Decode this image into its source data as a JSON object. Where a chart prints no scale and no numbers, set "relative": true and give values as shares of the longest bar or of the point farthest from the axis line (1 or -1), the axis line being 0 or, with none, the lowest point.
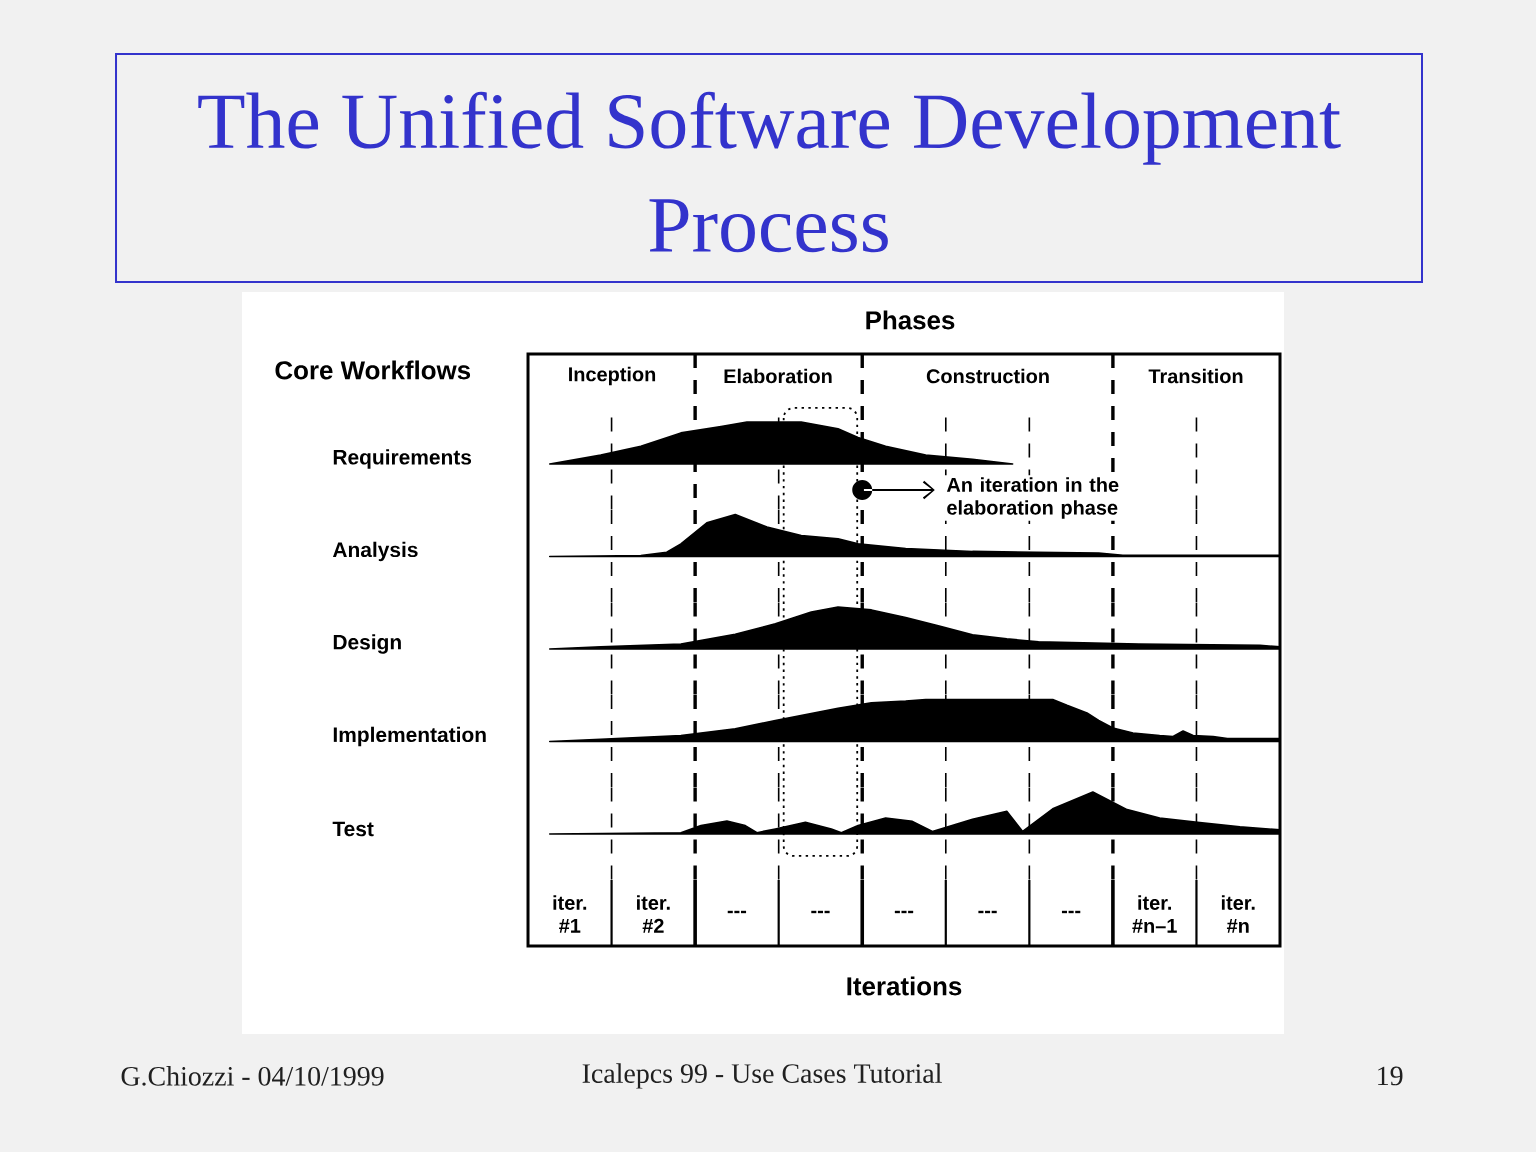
{
  "chart_data": [
    {
      "type": "area",
      "title": "The Unified Software Development Process",
      "ylabel": "Requirements",
      "relative": true,
      "xlim": [
        0,
        9
      ],
      "tick_labels": false,
      "color": "#000000",
      "x": [
        0.26,
        0.87,
        1.35,
        1.83,
        2.31,
        2.62,
        2.91,
        3.27,
        3.71,
        3.95,
        4.28,
        4.76,
        5.32,
        5.8
      ],
      "values": [
        0,
        0.21,
        0.42,
        0.74,
        0.89,
        1,
        1,
        1,
        0.84,
        0.63,
        0.42,
        0.21,
        0.11,
        0
      ],
      "ref_lines": [
        {
          "axis": "x",
          "value": 1,
          "line_style": "dashed"
        },
        {
          "axis": "x",
          "value": 2,
          "line_style": "dashed"
        },
        {
          "axis": "x",
          "value": 3,
          "line_style": "dashed"
        },
        {
          "axis": "x",
          "value": 4,
          "line_style": "dashed"
        },
        {
          "axis": "x",
          "value": 5,
          "line_style": "dashed"
        },
        {
          "axis": "x",
          "value": 6,
          "line_style": "dashed"
        },
        {
          "axis": "x",
          "value": 7,
          "line_style": "dashed"
        },
        {
          "axis": "x",
          "value": 8,
          "line_style": "dashed"
        }
      ],
      "annotations": [
        "Phases",
        "Core Workflows",
        "Inception",
        "Elaboration",
        "Construction",
        "Transition",
        "An iteration in the elaboration phase",
        "G.Chiozzi - 04/10/1999",
        "Icalepcs 99 - Use Cases Tutorial",
        "19"
      ]
    },
    {
      "type": "area",
      "ylabel": "Analysis",
      "relative": true,
      "xlim": [
        0,
        9
      ],
      "tick_labels": false,
      "color": "#000000",
      "x": [
        0.26,
        1.35,
        1.66,
        1.83,
        2.14,
        2.48,
        2.86,
        3.27,
        3.71,
        3.95,
        4.52,
        5.32,
        6.83,
        7.12,
        9
      ],
      "values": [
        0,
        0.02,
        0.1,
        0.3,
        0.8,
        1,
        0.7,
        0.5,
        0.42,
        0.3,
        0.19,
        0.12,
        0.08,
        0.03,
        0.03
      ],
      "ref_lines": [
        {
          "axis": "x",
          "value": 1,
          "line_style": "dashed"
        },
        {
          "axis": "x",
          "value": 2,
          "line_style": "dashed"
        },
        {
          "axis": "x",
          "value": 3,
          "line_style": "dashed"
        },
        {
          "axis": "x",
          "value": 4,
          "line_style": "dashed"
        },
        {
          "axis": "x",
          "value": 5,
          "line_style": "dashed"
        },
        {
          "axis": "x",
          "value": 6,
          "line_style": "dashed"
        },
        {
          "axis": "x",
          "value": 7,
          "line_style": "dashed"
        },
        {
          "axis": "x",
          "value": 8,
          "line_style": "dashed"
        }
      ]
    },
    {
      "type": "area",
      "ylabel": "Design",
      "relative": true,
      "xlim": [
        0,
        9
      ],
      "tick_labels": false,
      "color": "#000000",
      "x": [
        0.26,
        0.87,
        1.83,
        2.48,
        2.96,
        3.39,
        3.71,
        4.11,
        4.52,
        4.91,
        5.32,
        5.73,
        6.11,
        7.31,
        8.76,
        9
      ],
      "values": [
        0,
        0.05,
        0.12,
        0.35,
        0.6,
        0.88,
        1,
        0.93,
        0.75,
        0.55,
        0.34,
        0.24,
        0.17,
        0.12,
        0.09,
        0.05
      ],
      "ref_lines": [
        {
          "axis": "x",
          "value": 1,
          "line_style": "dashed"
        },
        {
          "axis": "x",
          "value": 2,
          "line_style": "dashed"
        },
        {
          "axis": "x",
          "value": 3,
          "line_style": "dashed"
        },
        {
          "axis": "x",
          "value": 4,
          "line_style": "dashed"
        },
        {
          "axis": "x",
          "value": 5,
          "line_style": "dashed"
        },
        {
          "axis": "x",
          "value": 6,
          "line_style": "dashed"
        },
        {
          "axis": "x",
          "value": 7,
          "line_style": "dashed"
        },
        {
          "axis": "x",
          "value": 8,
          "line_style": "dashed"
        }
      ]
    },
    {
      "type": "area",
      "ylabel": "Implementation",
      "relative": true,
      "xlim": [
        0,
        9
      ],
      "tick_labels": false,
      "color": "#000000",
      "x": [
        0.26,
        0.87,
        1.83,
        2.48,
        2.96,
        3.71,
        4.11,
        4.52,
        4.76,
        6.28,
        6.45,
        6.69,
        6.83,
        7.0,
        7.24,
        7.56,
        7.72,
        7.84,
        7.96,
        8.2,
        8.37,
        9
      ],
      "values": [
        0,
        0.05,
        0.14,
        0.3,
        0.5,
        0.79,
        0.92,
        0.96,
        1,
        1,
        0.86,
        0.68,
        0.5,
        0.32,
        0.2,
        0.14,
        0.12,
        0.25,
        0.14,
        0.12,
        0.07,
        0.07
      ],
      "ref_lines": [
        {
          "axis": "x",
          "value": 1,
          "line_style": "dashed"
        },
        {
          "axis": "x",
          "value": 2,
          "line_style": "dashed"
        },
        {
          "axis": "x",
          "value": 3,
          "line_style": "dashed"
        },
        {
          "axis": "x",
          "value": 4,
          "line_style": "dashed"
        },
        {
          "axis": "x",
          "value": 5,
          "line_style": "dashed"
        },
        {
          "axis": "x",
          "value": 6,
          "line_style": "dashed"
        },
        {
          "axis": "x",
          "value": 7,
          "line_style": "dashed"
        },
        {
          "axis": "x",
          "value": 8,
          "line_style": "dashed"
        }
      ]
    },
    {
      "type": "area",
      "ylabel": "Test",
      "xlabel": "Iterations",
      "relative": true,
      "xlim": [
        0,
        9
      ],
      "tick_labels": "x",
      "color": "#000000",
      "xticks": [
        {
          "value": 0.5,
          "label": "iter. #1"
        },
        {
          "value": 1.5,
          "label": "iter. #2"
        },
        {
          "value": 2.5,
          "label": "---"
        },
        {
          "value": 3.5,
          "label": "---"
        },
        {
          "value": 4.5,
          "label": "---"
        },
        {
          "value": 5.5,
          "label": "---"
        },
        {
          "value": 6.5,
          "label": "---"
        },
        {
          "value": 7.5,
          "label": "iter. #n–1"
        },
        {
          "value": 8.5,
          "label": "iter. #n"
        }
      ],
      "x": [
        0.26,
        1.83,
        2.07,
        2.38,
        2.6,
        2.74,
        2.96,
        3.32,
        3.63,
        3.75,
        3.95,
        4.28,
        4.6,
        4.84,
        5.32,
        5.73,
        5.92,
        6.28,
        6.76,
        7.17,
        7.56,
        8.04,
        8.52,
        9
      ],
      "values": [
        0,
        0.03,
        0.2,
        0.31,
        0.2,
        0.03,
        0.12,
        0.28,
        0.12,
        0.03,
        0.2,
        0.38,
        0.3,
        0.06,
        0.35,
        0.54,
        0.06,
        0.6,
        1,
        0.58,
        0.38,
        0.27,
        0.17,
        0.1
      ],
      "ref_lines": [
        {
          "axis": "x",
          "value": 1,
          "line_style": "dashed"
        },
        {
          "axis": "x",
          "value": 2,
          "line_style": "dashed"
        },
        {
          "axis": "x",
          "value": 3,
          "line_style": "dashed"
        },
        {
          "axis": "x",
          "value": 4,
          "line_style": "dashed"
        },
        {
          "axis": "x",
          "value": 5,
          "line_style": "dashed"
        },
        {
          "axis": "x",
          "value": 6,
          "line_style": "dashed"
        },
        {
          "axis": "x",
          "value": 7,
          "line_style": "dashed"
        },
        {
          "axis": "x",
          "value": 8,
          "line_style": "dashed"
        }
      ]
    }
  ]
}
